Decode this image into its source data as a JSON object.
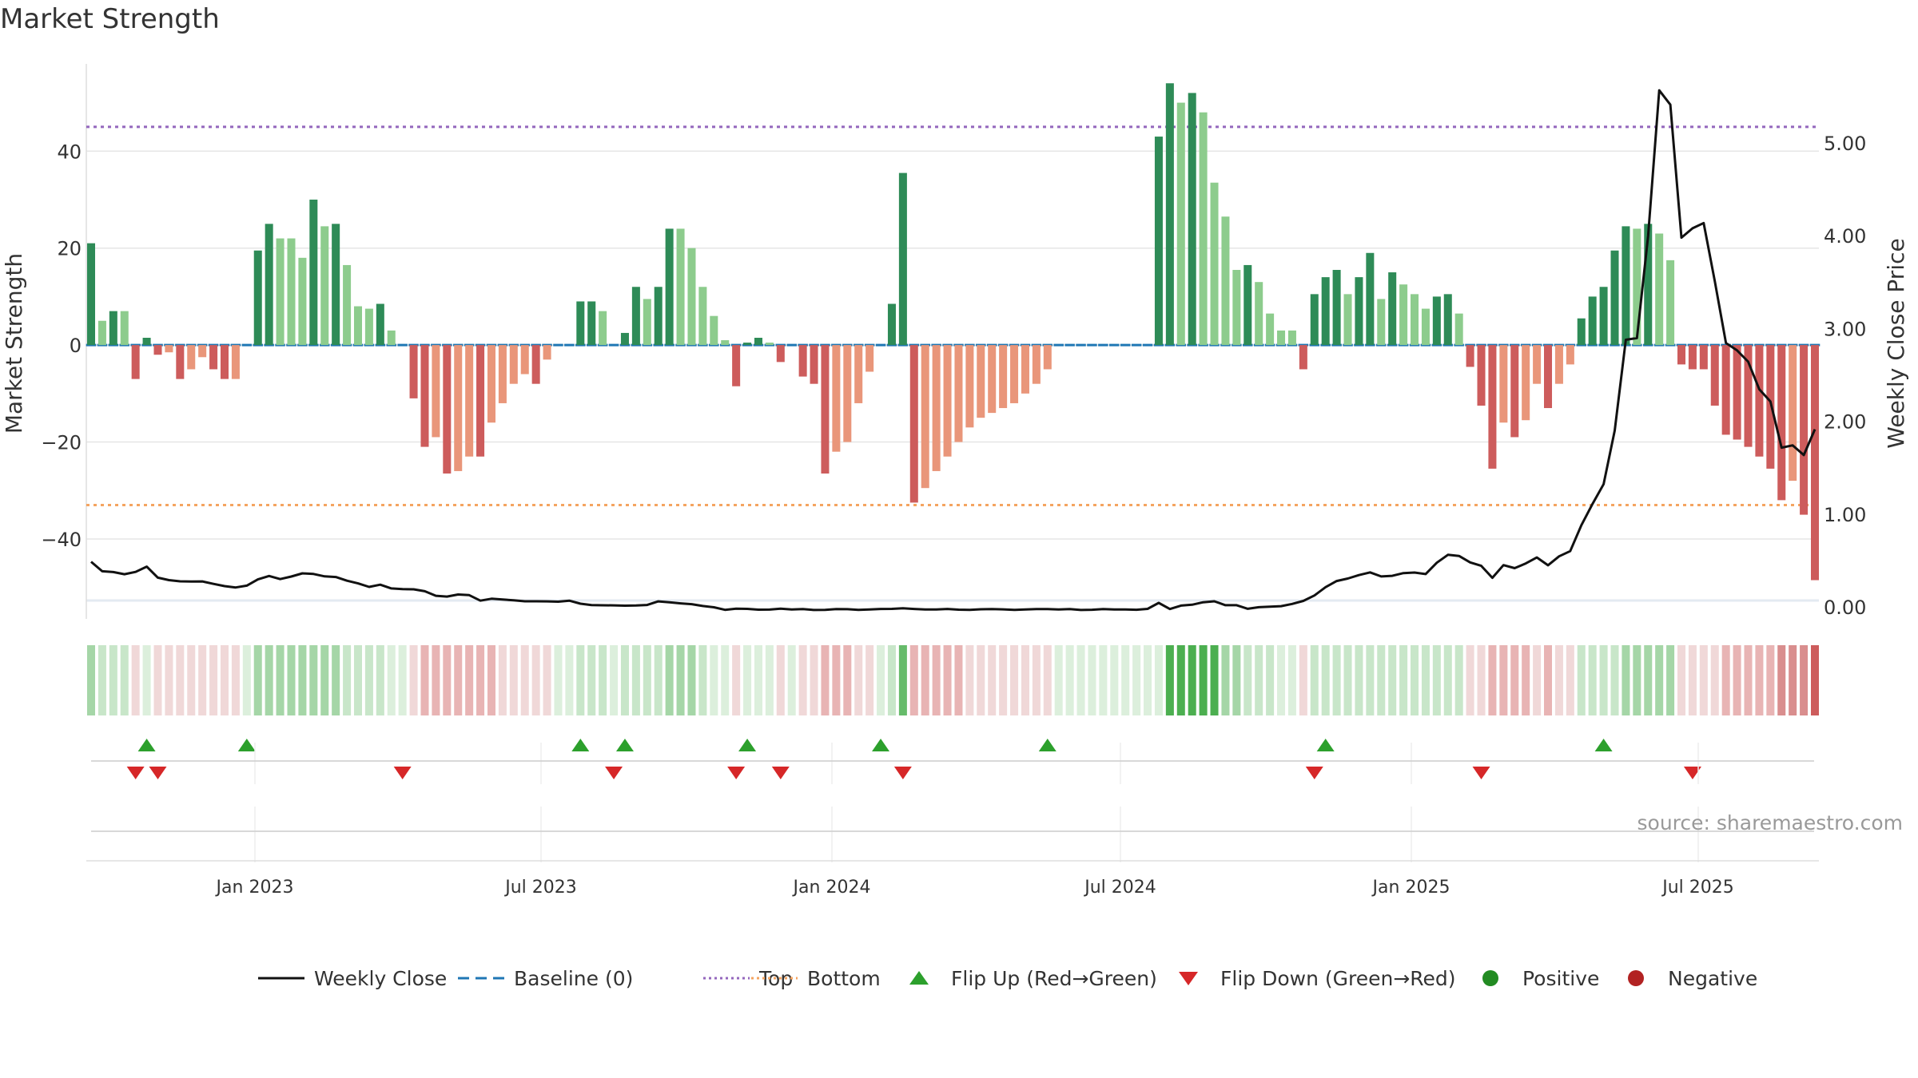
{
  "chart_data": {
    "type": "bar",
    "title": "Market Strength",
    "ylabel": "Market Strength",
    "y2label": "Weekly Close Price",
    "ylim": [
      -55,
      58
    ],
    "y2lim": [
      -0.05,
      5.85
    ],
    "yticks": [
      {
        "v": 40,
        "label": "40"
      },
      {
        "v": 20,
        "label": "20"
      },
      {
        "v": 0,
        "label": "0"
      },
      {
        "v": -20,
        "label": "−20"
      },
      {
        "v": -40,
        "label": "−40"
      }
    ],
    "y2ticks": [
      {
        "v": 5,
        "label": "5.00"
      },
      {
        "v": 4,
        "label": "4.00"
      },
      {
        "v": 3,
        "label": "3.00"
      },
      {
        "v": 2,
        "label": "2.00"
      },
      {
        "v": 1,
        "label": "1.00"
      },
      {
        "v": 0,
        "label": "0.00"
      }
    ],
    "xticks": [
      "Jan 2023",
      "Jul 2023",
      "Jan 2024",
      "Jul 2024",
      "Jan 2025",
      "Jul 2025"
    ],
    "top_line": 45,
    "bottom_line": -33,
    "baseline": 0,
    "strength": [
      21,
      5,
      7,
      7,
      -7,
      1.5,
      -2,
      -1.5,
      -7,
      -5,
      -2.5,
      -5,
      -7,
      -7,
      0,
      19.5,
      25,
      22,
      22,
      18,
      30,
      24.5,
      25,
      16.5,
      8,
      7.5,
      8.5,
      3,
      0,
      -11,
      -21,
      -19,
      -26.5,
      -26,
      -23,
      -23,
      -16,
      -12,
      -8,
      -6,
      -8,
      -3,
      0,
      0,
      9,
      9,
      7,
      0,
      2.5,
      12,
      9.5,
      12,
      24,
      24,
      20,
      12,
      6,
      1,
      -8.5,
      0.5,
      1.5,
      0.5,
      -3.5,
      0,
      -6.5,
      -8,
      -26.5,
      -22,
      -20,
      -12,
      -5.5,
      0,
      8.5,
      35.5,
      -32.5,
      -29.5,
      -26,
      -23,
      -20,
      -17,
      -15,
      -14,
      -13,
      -12,
      -10,
      -8,
      -5,
      0,
      0,
      0,
      0,
      0,
      0,
      0,
      0,
      0,
      43,
      54,
      50,
      52,
      48,
      33.5,
      26.5,
      15.5,
      16.5,
      13,
      6.5,
      3,
      3,
      -5,
      10.5,
      14,
      15.5,
      10.5,
      14,
      19,
      9.5,
      15,
      12.5,
      10.5,
      7.5,
      10,
      10.5,
      6.5,
      -4.5,
      -12.5,
      -25.5,
      -16,
      -19,
      -15.5,
      -8,
      -13,
      -8,
      -4,
      5.5,
      10,
      12,
      19.5,
      24.5,
      24,
      25,
      23,
      17.5,
      -4,
      -5,
      -5,
      -12.5,
      -18.5,
      -19.5,
      -21,
      -23,
      -25.5,
      -32,
      -28,
      -35,
      -48.5
    ],
    "close": [
      0.4875,
      0.3849,
      0.3762,
      0.3533,
      0.3781,
      0.4348,
      0.3168,
      0.2901,
      0.2771,
      0.2753,
      0.276,
      0.249,
      0.2253,
      0.2108,
      0.2306,
      0.2971,
      0.3343,
      0.3011,
      0.3285,
      0.3629,
      0.3563,
      0.3298,
      0.3233,
      0.2835,
      0.2544,
      0.2168,
      0.2406,
      0.2002,
      0.1925,
      0.1907,
      0.1702,
      0.1214,
      0.1122,
      0.135,
      0.1282,
      0.0687,
      0.0892,
      0.0806,
      0.0733,
      0.0622,
      0.0616,
      0.0607,
      0.0572,
      0.0685,
      0.0358,
      0.0208,
      0.019,
      0.0178,
      0.0143,
      0.0159,
      0.022,
      0.0608,
      0.0505,
      0.0391,
      0.0311,
      0.0114,
      -0.0024,
      -0.0306,
      -0.0184,
      -0.0197,
      -0.0281,
      -0.0276,
      -0.0185,
      -0.0255,
      -0.0224,
      -0.0316,
      -0.0304,
      -0.0227,
      -0.0235,
      -0.0315,
      -0.0258,
      -0.0211,
      -0.0203,
      -0.0135,
      -0.0209,
      -0.0266,
      -0.0261,
      -0.0205,
      -0.0289,
      -0.0301,
      -0.0244,
      -0.0219,
      -0.0254,
      -0.0307,
      -0.0255,
      -0.0228,
      -0.0212,
      -0.0257,
      -0.0216,
      -0.0321,
      -0.0292,
      -0.0228,
      -0.0259,
      -0.0263,
      -0.0292,
      -0.0202,
      0.0442,
      -0.0219,
      0.0153,
      0.0245,
      0.0517,
      0.0614,
      0.0197,
      0.0199,
      -0.0193,
      -0.0018,
      0.0046,
      0.0097,
      0.0335,
      0.0657,
      0.1246,
      0.214,
      0.2803,
      0.3065,
      0.3436,
      0.3732,
      0.3296,
      0.3365,
      0.3654,
      0.3716,
      0.3547,
      0.4769,
      0.5626,
      0.5502,
      0.4808,
      0.4437,
      0.3147,
      0.4514,
      0.4187,
      0.4698,
      0.5337,
      0.4496,
      0.5464,
      0.6021,
      0.8817,
      1.1106,
      1.3237,
      1.9005,
      2.8785,
      2.8968,
      3.9964,
      5.5656,
      5.4109,
      3.9788,
      4.0789,
      4.1356,
      3.5066,
      2.8432,
      2.7641,
      2.6422,
      2.3456,
      2.2148,
      1.7162,
      1.7417,
      1.6368,
      1.9146
    ],
    "bar_color": [
      "#2e8b57",
      "#8dcc8d",
      "#2e8b57",
      "#8dcc8d",
      "#cd5c5c",
      "#2e8b57",
      "#cd5c5c",
      "#e9967a",
      "#cd5c5c",
      "#e9967a",
      "#e9967a",
      "#cd5c5c",
      "#cd5c5c",
      "#e9967a",
      "#2e8b57",
      "#2e8b57",
      "#2e8b57",
      "#8dcc8d",
      "#8dcc8d",
      "#8dcc8d",
      "#2e8b57",
      "#8dcc8d",
      "#2e8b57",
      "#8dcc8d",
      "#8dcc8d",
      "#8dcc8d",
      "#2e8b57",
      "#8dcc8d",
      "#2e8b57",
      "#cd5c5c",
      "#cd5c5c",
      "#e9967a",
      "#cd5c5c",
      "#e9967a",
      "#e9967a",
      "#cd5c5c",
      "#e9967a",
      "#e9967a",
      "#e9967a",
      "#e9967a",
      "#cd5c5c",
      "#e9967a",
      "#2e8b57",
      "#2e8b57",
      "#2e8b57",
      "#2e8b57",
      "#8dcc8d",
      "#2e8b57",
      "#2e8b57",
      "#2e8b57",
      "#8dcc8d",
      "#2e8b57",
      "#2e8b57",
      "#8dcc8d",
      "#8dcc8d",
      "#8dcc8d",
      "#8dcc8d",
      "#8dcc8d",
      "#cd5c5c",
      "#2e8b57",
      "#2e8b57",
      "#8dcc8d",
      "#cd5c5c",
      "#cd5c5c",
      "#cd5c5c",
      "#cd5c5c",
      "#cd5c5c",
      "#e9967a",
      "#e9967a",
      "#e9967a",
      "#e9967a",
      "#2e8b57",
      "#2e8b57",
      "#2e8b57",
      "#cd5c5c",
      "#e9967a",
      "#e9967a",
      "#e9967a",
      "#e9967a",
      "#e9967a",
      "#e9967a",
      "#e9967a",
      "#e9967a",
      "#e9967a",
      "#e9967a",
      "#e9967a",
      "#e9967a",
      "#2e8b57",
      "#2e8b57",
      "#2e8b57",
      "#2e8b57",
      "#2e8b57",
      "#2e8b57",
      "#2e8b57",
      "#2e8b57",
      "#2e8b57",
      "#2e8b57",
      "#2e8b57",
      "#8dcc8d",
      "#2e8b57",
      "#8dcc8d",
      "#8dcc8d",
      "#8dcc8d",
      "#8dcc8d",
      "#2e8b57",
      "#8dcc8d",
      "#8dcc8d",
      "#8dcc8d",
      "#8dcc8d",
      "#cd5c5c",
      "#2e8b57",
      "#2e8b57",
      "#2e8b57",
      "#8dcc8d",
      "#2e8b57",
      "#2e8b57",
      "#8dcc8d",
      "#2e8b57",
      "#8dcc8d",
      "#8dcc8d",
      "#8dcc8d",
      "#2e8b57",
      "#2e8b57",
      "#8dcc8d",
      "#cd5c5c",
      "#cd5c5c",
      "#cd5c5c",
      "#e9967a",
      "#cd5c5c",
      "#e9967a",
      "#e9967a",
      "#cd5c5c",
      "#e9967a",
      "#e9967a",
      "#2e8b57",
      "#2e8b57",
      "#2e8b57",
      "#2e8b57",
      "#2e8b57",
      "#8dcc8d",
      "#2e8b57",
      "#8dcc8d",
      "#8dcc8d",
      "#cd5c5c",
      "#cd5c5c",
      "#cd5c5c",
      "#cd5c5c",
      "#cd5c5c",
      "#cd5c5c",
      "#cd5c5c",
      "#cd5c5c",
      "#cd5c5c",
      "#cd5c5c",
      "#e9967a",
      "#cd5c5c",
      "#cd5c5c"
    ],
    "heat_color": [
      "#a5d6a7",
      "#c8e6c9",
      "#c8e6c9",
      "#c8e6c9",
      "#f0d8d8",
      "#dcefdc",
      "#f0d8d8",
      "#f0d8d8",
      "#f0d8d8",
      "#f0d8d8",
      "#f0d8d8",
      "#f0d8d8",
      "#f0d8d8",
      "#f0d8d8",
      "#dcefdc",
      "#a5d6a7",
      "#a5d6a7",
      "#a5d6a7",
      "#a5d6a7",
      "#a5d6a7",
      "#a5d6a7",
      "#a5d6a7",
      "#a5d6a7",
      "#c8e6c9",
      "#c8e6c9",
      "#c8e6c9",
      "#c8e6c9",
      "#dcefdc",
      "#dcefdc",
      "#f0d8d8",
      "#e8b4b4",
      "#e8b4b4",
      "#e8b4b4",
      "#e8b4b4",
      "#e8b4b4",
      "#e8b4b4",
      "#e8b4b4",
      "#f0d8d8",
      "#f0d8d8",
      "#f0d8d8",
      "#f0d8d8",
      "#f0d8d8",
      "#dcefdc",
      "#dcefdc",
      "#c8e6c9",
      "#c8e6c9",
      "#c8e6c9",
      "#dcefdc",
      "#c8e6c9",
      "#c8e6c9",
      "#c8e6c9",
      "#c8e6c9",
      "#a5d6a7",
      "#a5d6a7",
      "#a5d6a7",
      "#c8e6c9",
      "#dcefdc",
      "#dcefdc",
      "#f0d8d8",
      "#dcefdc",
      "#dcefdc",
      "#dcefdc",
      "#f0d8d8",
      "#dcefdc",
      "#f0d8d8",
      "#f0d8d8",
      "#e8b4b4",
      "#e8b4b4",
      "#e8b4b4",
      "#f0d8d8",
      "#f0d8d8",
      "#dcefdc",
      "#c8e6c9",
      "#66bb6a",
      "#e8b4b4",
      "#e8b4b4",
      "#e8b4b4",
      "#e8b4b4",
      "#e8b4b4",
      "#f0d8d8",
      "#f0d8d8",
      "#f0d8d8",
      "#f0d8d8",
      "#f0d8d8",
      "#f0d8d8",
      "#f0d8d8",
      "#f0d8d8",
      "#dcefdc",
      "#dcefdc",
      "#dcefdc",
      "#dcefdc",
      "#dcefdc",
      "#dcefdc",
      "#dcefdc",
      "#dcefdc",
      "#dcefdc",
      "#dcefdc",
      "#4caf50",
      "#4caf50",
      "#4caf50",
      "#4caf50",
      "#4caf50",
      "#a5d6a7",
      "#a5d6a7",
      "#c8e6c9",
      "#c8e6c9",
      "#c8e6c9",
      "#dcefdc",
      "#dcefdc",
      "#f0d8d8",
      "#c8e6c9",
      "#c8e6c9",
      "#c8e6c9",
      "#c8e6c9",
      "#c8e6c9",
      "#c8e6c9",
      "#c8e6c9",
      "#c8e6c9",
      "#c8e6c9",
      "#c8e6c9",
      "#c8e6c9",
      "#c8e6c9",
      "#c8e6c9",
      "#c8e6c9",
      "#f0d8d8",
      "#f0d8d8",
      "#e8b4b4",
      "#e8b4b4",
      "#e8b4b4",
      "#e8b4b4",
      "#f0d8d8",
      "#e8b4b4",
      "#f0d8d8",
      "#f0d8d8",
      "#c8e6c9",
      "#c8e6c9",
      "#c8e6c9",
      "#c8e6c9",
      "#a5d6a7",
      "#a5d6a7",
      "#a5d6a7",
      "#a5d6a7",
      "#a5d6a7",
      "#f0d8d8",
      "#f0d8d8",
      "#f0d8d8",
      "#f0d8d8",
      "#e8b4b4",
      "#e8b4b4",
      "#e8b4b4",
      "#e8b4b4",
      "#e8b4b4",
      "#d98e8e",
      "#d98e8e",
      "#d98e8e",
      "#cd5c5c"
    ],
    "flip_up": [
      5,
      14,
      44,
      48,
      59,
      71,
      86,
      111,
      136
    ],
    "flip_down": [
      4,
      6,
      28,
      47,
      58,
      62,
      73,
      110,
      125,
      144
    ],
    "source": "source: sharemaestro.com",
    "legend": [
      {
        "label": "Weekly Close",
        "kind": "line",
        "color": "#111111",
        "dash": ""
      },
      {
        "label": "Baseline (0)",
        "kind": "line",
        "color": "#1f77b4",
        "dash": "14,8"
      },
      {
        "label": "Top",
        "kind": "line",
        "color": "#9467bd",
        "dash": "3,4"
      },
      {
        "label": "Bottom",
        "kind": "line",
        "color": "#f4a460",
        "dash": "3,4"
      },
      {
        "label": "Flip Up (Red→Green)",
        "kind": "tri-up",
        "color": "#2ca02c"
      },
      {
        "label": "Flip Down (Green→Red)",
        "kind": "tri-down",
        "color": "#d62728"
      },
      {
        "label": "Positive",
        "kind": "dot",
        "color": "#228b22"
      },
      {
        "label": "Negative",
        "kind": "dot",
        "color": "#b22222"
      }
    ],
    "colors": {
      "top": "#9467bd",
      "bottom": "#f4a460",
      "baseline": "#1f77b4",
      "close": "#111111",
      "grid": "#e6e6e6"
    }
  }
}
